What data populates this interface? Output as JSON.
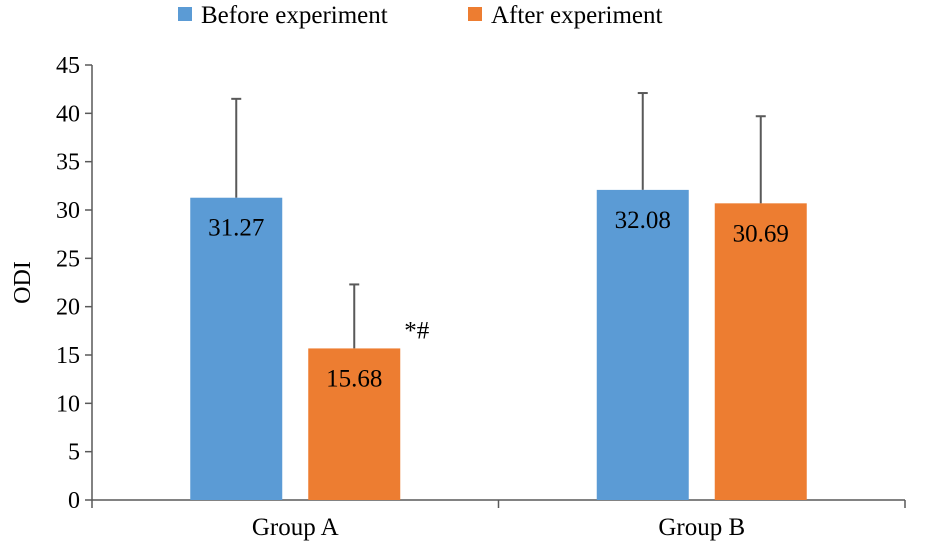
{
  "chart_data": {
    "type": "bar",
    "title": "",
    "xlabel": "",
    "ylabel": "ODI",
    "ylim": [
      0,
      45
    ],
    "y_ticks": [
      "0",
      "5",
      "10",
      "15",
      "20",
      "25",
      "30",
      "35",
      "40",
      "45"
    ],
    "categories": [
      "Group A",
      "Group B"
    ],
    "legend_position": "top-center",
    "series": [
      {
        "name": "Before experiment",
        "color": "#5b9bd5",
        "values": [
          31.27,
          32.08
        ],
        "labels": [
          "31.27",
          "32.08"
        ],
        "error_upper": [
          41.5,
          42.1
        ]
      },
      {
        "name": "After experiment",
        "color": "#ed7d31",
        "values": [
          15.68,
          30.69
        ],
        "labels": [
          "15.68",
          "30.69"
        ],
        "error_upper": [
          22.3,
          39.7
        ]
      }
    ],
    "annotations": [
      {
        "text": "*#",
        "series": 1,
        "category": 0
      }
    ]
  }
}
